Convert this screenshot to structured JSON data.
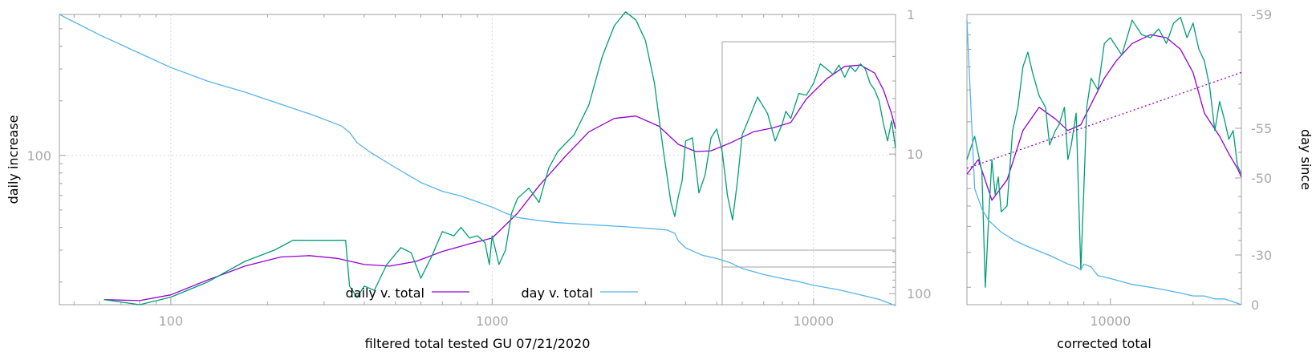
{
  "chart_data": [
    {
      "type": "line",
      "title": "",
      "xlabel": "filtered total tested GU 07/21/2020",
      "ylabel": "daily increase",
      "y2label": "",
      "x_scale": "log",
      "y_scale": "log",
      "y2_scale": "log, reversed",
      "xlim": [
        45,
        18000
      ],
      "ylim": [
        15,
        600
      ],
      "y2lim": [
        1,
        120
      ],
      "x_ticks": [
        "100",
        "1000",
        "10000"
      ],
      "y_ticks": [
        "100"
      ],
      "y2_ticks": [
        "1",
        "10",
        "100"
      ],
      "grid": true,
      "legend": "bottom-center",
      "colors": {
        "daily": "#9400d3",
        "filtered": "#009e73",
        "day": "#56b4e9"
      },
      "inset_note": "zoomed region box (right)",
      "series": [
        {
          "name": "daily v. total",
          "axis": "y",
          "x": [
            62,
            80,
            100,
            130,
            170,
            220,
            270,
            330,
            400,
            480,
            580,
            700,
            850,
            1000,
            1200,
            1400,
            1700,
            2000,
            2400,
            2800,
            3300,
            3800,
            4300,
            4800,
            5500,
            6500,
            7500,
            8500,
            9500,
            11000,
            12500,
            14000,
            15500,
            16500,
            17500,
            18000
          ],
          "y": [
            16,
            15.8,
            17,
            20.5,
            24.5,
            27.5,
            28,
            27,
            25,
            24.5,
            26,
            29.5,
            32.5,
            35,
            48,
            68,
            100,
            135,
            160,
            165,
            145,
            115,
            105,
            106,
            117,
            135,
            142,
            152,
            205,
            265,
            310,
            315,
            285,
            230,
            170,
            140
          ]
        },
        {
          "name": "",
          "axis": "y",
          "x": [
            62,
            80,
            100,
            130,
            170,
            210,
            240,
            300,
            350,
            360,
            380,
            400,
            430,
            470,
            520,
            560,
            600,
            650,
            700,
            760,
            800,
            850,
            900,
            950,
            980,
            1000,
            1050,
            1100,
            1150,
            1200,
            1300,
            1400,
            1500,
            1600,
            1800,
            2000,
            2200,
            2400,
            2600,
            2800,
            3000,
            3200,
            3400,
            3600,
            3700,
            3800,
            3900,
            4000,
            4200,
            4400,
            4600,
            4800,
            5000,
            5200,
            5400,
            5600,
            5800,
            6000,
            6300,
            6700,
            7200,
            7600,
            8000,
            8200,
            8500,
            9000,
            9500,
            10000,
            10500,
            11000,
            11500,
            12000,
            12500,
            13000,
            13500,
            14000,
            14500,
            15000,
            15500,
            16000,
            16500,
            17000,
            17500,
            18000
          ],
          "y": [
            16,
            15,
            16.5,
            20,
            26,
            30,
            34,
            34,
            34,
            19,
            16.5,
            19,
            18,
            25,
            31,
            29,
            21,
            28,
            38,
            36,
            40,
            35,
            36,
            33,
            25,
            36,
            25,
            30,
            48,
            58,
            66,
            55,
            85,
            105,
            130,
            190,
            350,
            520,
            620,
            560,
            430,
            250,
            110,
            55,
            46,
            60,
            72,
            120,
            125,
            62,
            78,
            125,
            140,
            105,
            60,
            44,
            72,
            130,
            160,
            210,
            170,
            120,
            150,
            175,
            160,
            220,
            215,
            250,
            320,
            300,
            280,
            315,
            270,
            310,
            290,
            320,
            300,
            250,
            230,
            200,
            150,
            120,
            155,
            110
          ]
        },
        {
          "name": "day v. total",
          "axis": "y2",
          "x": [
            45,
            60,
            80,
            100,
            130,
            170,
            220,
            280,
            340,
            360,
            380,
            420,
            500,
            600,
            700,
            800,
            900,
            1000,
            1100,
            1200,
            1400,
            1600,
            2000,
            2500,
            3000,
            3500,
            3700,
            3800,
            4000,
            4500,
            5000,
            5500,
            6000,
            7000,
            8000,
            9000,
            10000,
            12000,
            14000,
            16000,
            17000,
            18000
          ],
          "y": [
            1,
            1.4,
            1.9,
            2.4,
            3.0,
            3.6,
            4.4,
            5.3,
            6.3,
            7.0,
            8.3,
            9.8,
            12.5,
            16,
            18.5,
            20,
            22,
            24,
            26.5,
            28.5,
            30,
            31,
            32,
            33,
            34,
            35,
            37,
            42,
            47,
            53,
            56,
            60,
            66,
            73,
            78,
            82,
            87,
            94,
            102,
            110,
            116,
            122
          ]
        }
      ]
    },
    {
      "type": "line",
      "title": "",
      "xlabel": "corrected total",
      "ylabel": "",
      "y2label": "day since",
      "x_scale": "log",
      "y_scale": "log",
      "x_ticks": [
        "10000"
      ],
      "y2_ticks": [
        "-59",
        "-55",
        "-50",
        "-30",
        "0"
      ],
      "xlim": [
        3000,
        30000
      ],
      "y2lim": [
        -59,
        0
      ],
      "grid": false,
      "series": [
        {
          "name": "",
          "x": [
            3000,
            3300,
            3700,
            4200,
            4800,
            5500,
            6300,
            7000,
            7800,
            8600,
            9500,
            10500,
            12000,
            14000,
            16000,
            18000,
            20000,
            22000,
            25000,
            27000,
            29000,
            30000
          ],
          "y": [
            0.45,
            0.5,
            0.36,
            0.43,
            0.6,
            0.68,
            0.64,
            0.6,
            0.62,
            0.7,
            0.78,
            0.84,
            0.9,
            0.93,
            0.92,
            0.88,
            0.8,
            0.66,
            0.58,
            0.52,
            0.47,
            0.44
          ]
        },
        {
          "name": "",
          "x": [
            3000,
            3200,
            3400,
            3500,
            3600,
            3700,
            3800,
            3900,
            4000,
            4200,
            4400,
            4600,
            4800,
            5000,
            5200,
            5500,
            5800,
            6000,
            6300,
            6500,
            6800,
            7000,
            7200,
            7500,
            7800,
            8000,
            8200,
            8500,
            9000,
            9500,
            10000,
            11000,
            12000,
            13000,
            14000,
            15000,
            16000,
            17000,
            18000,
            19000,
            20000,
            21000,
            22000,
            23000,
            24000,
            25000,
            26000,
            27000,
            28000,
            29000,
            30000
          ],
          "y": [
            0.5,
            0.58,
            0.46,
            0.06,
            0.3,
            0.5,
            0.38,
            0.44,
            0.32,
            0.34,
            0.6,
            0.68,
            0.82,
            0.87,
            0.8,
            0.72,
            0.68,
            0.55,
            0.6,
            0.62,
            0.68,
            0.5,
            0.55,
            0.66,
            0.12,
            0.4,
            0.68,
            0.78,
            0.74,
            0.9,
            0.92,
            0.86,
            0.98,
            0.93,
            0.92,
            0.95,
            0.9,
            0.97,
            0.99,
            0.92,
            0.97,
            0.88,
            0.84,
            0.75,
            0.6,
            0.7,
            0.64,
            0.57,
            0.6,
            0.48,
            0.45
          ]
        },
        {
          "name": "",
          "x": [
            3000,
            3200,
            3400,
            3600,
            4000,
            4500,
            5000,
            6000,
            7000,
            7500,
            7800,
            8000,
            8500,
            9000,
            10000,
            12000,
            14000,
            16000,
            18000,
            20000,
            22000,
            24000,
            26000,
            28000,
            30000
          ],
          "y": [
            0.02,
            0.6,
            0.67,
            0.71,
            0.75,
            0.78,
            0.8,
            0.83,
            0.86,
            0.87,
            0.88,
            0.86,
            0.87,
            0.9,
            0.91,
            0.93,
            0.94,
            0.95,
            0.96,
            0.97,
            0.97,
            0.98,
            0.98,
            0.99,
            1.0
          ]
        },
        {
          "name": "",
          "x": [
            3000,
            30000
          ],
          "y": [
            0.47,
            0.8
          ]
        }
      ]
    }
  ]
}
